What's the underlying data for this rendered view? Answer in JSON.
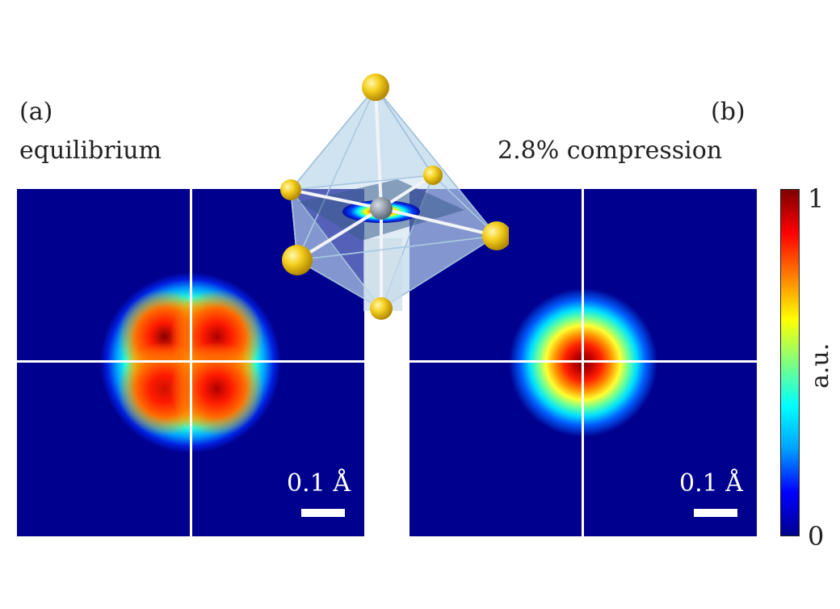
{
  "chart_data": [
    {
      "type": "heatmap",
      "panel_label": "(a)",
      "title": "equilibrium",
      "scale_bar_label": "0.1 Å",
      "distribution": "four-lobed square (two-by-two maxima around center)",
      "lobes": [
        {
          "dx": -0.1,
          "dy": -0.1,
          "peak": 1.0
        },
        {
          "dx": 0.1,
          "dy": -0.1,
          "peak": 0.95
        },
        {
          "dx": -0.1,
          "dy": 0.1,
          "peak": 0.88
        },
        {
          "dx": 0.1,
          "dy": 0.1,
          "peak": 0.95
        }
      ],
      "crosshair": true
    },
    {
      "type": "heatmap",
      "panel_label": "(b)",
      "title": "2.8% compression",
      "scale_bar_label": "0.1 Å",
      "distribution": "single centered peak",
      "lobes": [
        {
          "dx": 0.0,
          "dy": 0.0,
          "peak": 1.0
        }
      ],
      "crosshair": true
    }
  ],
  "colorbar": {
    "min_label": "0",
    "max_label": "1",
    "title": "a.u.",
    "colormap": "jet",
    "stops": [
      "#00008f",
      "#0000ff",
      "#00a0ff",
      "#00ffff",
      "#7fff7f",
      "#ffff00",
      "#ff7f00",
      "#ff0000",
      "#7f0000"
    ]
  },
  "inset": {
    "object": "octahedron-icon",
    "vertex_color": "#f5d020",
    "center_atom_color": "#8a96a6"
  }
}
